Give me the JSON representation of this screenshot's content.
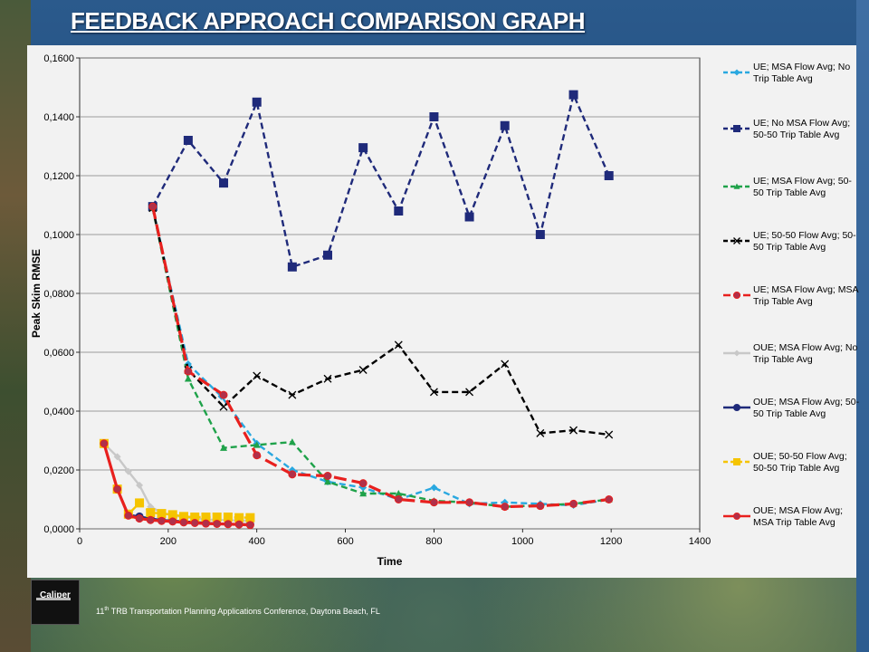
{
  "slide": {
    "title": "FEEDBACK APPROACH COMPARISON GRAPH",
    "footer_prefix": "11",
    "footer_sup": "th",
    "footer_rest": " TRB Transportation Planning Applications Conference, Daytona Beach, FL",
    "logo_text": "Caliper"
  },
  "chart_data": {
    "type": "line",
    "title": "",
    "xlabel": "Time",
    "ylabel": "Peak Skim RMSE",
    "xlim": [
      0,
      1400
    ],
    "ylim": [
      0,
      0.16
    ],
    "x_ticks": [
      0,
      200,
      400,
      600,
      800,
      1000,
      1200,
      1400
    ],
    "x_tick_labels": [
      "0",
      "200",
      "400",
      "600",
      "800",
      "1000",
      "1200",
      "1400"
    ],
    "y_ticks": [
      0,
      0.02,
      0.04,
      0.06,
      0.08,
      0.1,
      0.12,
      0.14,
      0.16
    ],
    "y_tick_labels": [
      "0,0000",
      "0,0200",
      "0,0400",
      "0,0600",
      "0,0800",
      "0,1000",
      "0,1200",
      "0,1400",
      "0,1600"
    ],
    "grid": "horizontal",
    "legend_position": "right",
    "series": [
      {
        "name": "UE; MSA Flow Avg; No Trip Table Avg",
        "color": "#29a8e0",
        "dash": "7,4",
        "marker": "diamond",
        "points": [
          [
            165,
            0.109
          ],
          [
            245,
            0.056
          ],
          [
            320,
            0.045
          ],
          [
            400,
            0.029
          ],
          [
            480,
            0.02
          ],
          [
            560,
            0.016
          ],
          [
            640,
            0.014
          ],
          [
            720,
            0.01
          ],
          [
            800,
            0.014
          ],
          [
            880,
            0.0085
          ],
          [
            960,
            0.009
          ],
          [
            1040,
            0.0085
          ],
          [
            1115,
            0.008
          ],
          [
            1195,
            0.01
          ]
        ]
      },
      {
        "name": "UE; No MSA Flow Avg; 50-50 Trip Table Avg",
        "color": "#1f2a7a",
        "dash": "7,4",
        "marker": "square",
        "points": [
          [
            165,
            0.1095
          ],
          [
            245,
            0.132
          ],
          [
            325,
            0.1175
          ],
          [
            400,
            0.145
          ],
          [
            480,
            0.089
          ],
          [
            560,
            0.093
          ],
          [
            640,
            0.1295
          ],
          [
            720,
            0.108
          ],
          [
            800,
            0.14
          ],
          [
            880,
            0.106
          ],
          [
            960,
            0.137
          ],
          [
            1040,
            0.1
          ],
          [
            1115,
            0.1475
          ],
          [
            1195,
            0.12
          ]
        ]
      },
      {
        "name": "UE; MSA Flow Avg; 50-50 Trip Table Avg",
        "color": "#1fa24a",
        "dash": "7,4",
        "marker": "triangle",
        "points": [
          [
            165,
            0.109
          ],
          [
            245,
            0.051
          ],
          [
            325,
            0.0275
          ],
          [
            400,
            0.0285
          ],
          [
            480,
            0.0295
          ],
          [
            560,
            0.016
          ],
          [
            640,
            0.012
          ],
          [
            720,
            0.012
          ],
          [
            800,
            0.0095
          ],
          [
            880,
            0.009
          ],
          [
            960,
            0.0075
          ],
          [
            1040,
            0.008
          ],
          [
            1115,
            0.0085
          ],
          [
            1195,
            0.01
          ]
        ]
      },
      {
        "name": "UE; 50-50 Flow Avg; 50-50 Trip Table Avg",
        "color": "#000000",
        "dash": "7,4",
        "marker": "x",
        "points": [
          [
            165,
            0.109
          ],
          [
            245,
            0.054
          ],
          [
            325,
            0.0415
          ],
          [
            400,
            0.052
          ],
          [
            480,
            0.0455
          ],
          [
            560,
            0.051
          ],
          [
            640,
            0.054
          ],
          [
            720,
            0.0625
          ],
          [
            800,
            0.0465
          ],
          [
            880,
            0.0465
          ],
          [
            960,
            0.056
          ],
          [
            1040,
            0.0325
          ],
          [
            1115,
            0.0335
          ],
          [
            1195,
            0.032
          ]
        ]
      },
      {
        "name": "UE; MSA Flow Avg; MSA Trip Table Avg",
        "color": "#e8201e",
        "dash": "14,6",
        "marker": "circle",
        "points": [
          [
            165,
            0.1095
          ],
          [
            245,
            0.0535
          ],
          [
            325,
            0.0455
          ],
          [
            400,
            0.025
          ],
          [
            480,
            0.0185
          ],
          [
            560,
            0.018
          ],
          [
            640,
            0.0155
          ],
          [
            720,
            0.01
          ],
          [
            800,
            0.009
          ],
          [
            880,
            0.009
          ],
          [
            960,
            0.0075
          ],
          [
            1040,
            0.0078
          ],
          [
            1115,
            0.0085
          ],
          [
            1195,
            0.01
          ]
        ]
      },
      {
        "name": "OUE; MSA Flow Avg; No Trip Table Avg",
        "color": "#c8c8c8",
        "dash": "",
        "marker": "diamond",
        "points": [
          [
            55,
            0.029
          ],
          [
            85,
            0.0245
          ],
          [
            110,
            0.0195
          ],
          [
            135,
            0.0148
          ],
          [
            160,
            0.0075
          ],
          [
            185,
            0.0055
          ],
          [
            210,
            0.0045
          ],
          [
            235,
            0.004
          ],
          [
            260,
            0.0035
          ],
          [
            285,
            0.0032
          ],
          [
            310,
            0.003
          ],
          [
            335,
            0.003
          ],
          [
            360,
            0.0028
          ],
          [
            385,
            0.0028
          ]
        ]
      },
      {
        "name": "OUE; MSA Flow Avg; 50-50 Trip Table Avg",
        "color": "#1f2a7a",
        "dash": "",
        "marker": "circle",
        "points": [
          [
            55,
            0.029
          ],
          [
            85,
            0.0135
          ],
          [
            110,
            0.0048
          ],
          [
            135,
            0.0042
          ],
          [
            160,
            0.0035
          ],
          [
            185,
            0.003
          ],
          [
            210,
            0.0028
          ],
          [
            235,
            0.0025
          ],
          [
            260,
            0.0023
          ],
          [
            285,
            0.002
          ],
          [
            310,
            0.0018
          ],
          [
            335,
            0.0017
          ],
          [
            360,
            0.0016
          ],
          [
            385,
            0.0015
          ]
        ]
      },
      {
        "name": "OUE; 50-50 Flow Avg; 50-50 Trip Table Avg",
        "color": "#f5c400",
        "dash": "7,4",
        "marker": "square",
        "points": [
          [
            55,
            0.029
          ],
          [
            85,
            0.0135
          ],
          [
            110,
            0.005
          ],
          [
            135,
            0.0088
          ],
          [
            160,
            0.0055
          ],
          [
            185,
            0.0052
          ],
          [
            210,
            0.0048
          ],
          [
            235,
            0.0042
          ],
          [
            260,
            0.004
          ],
          [
            285,
            0.004
          ],
          [
            310,
            0.004
          ],
          [
            335,
            0.004
          ],
          [
            360,
            0.0038
          ],
          [
            385,
            0.0038
          ]
        ]
      },
      {
        "name": "OUE; MSA Flow Avg; MSA Trip Table Avg",
        "color": "#e8201e",
        "dash": "",
        "marker": "circle",
        "points": [
          [
            55,
            0.029
          ],
          [
            85,
            0.0135
          ],
          [
            110,
            0.0045
          ],
          [
            135,
            0.0035
          ],
          [
            160,
            0.003
          ],
          [
            185,
            0.0027
          ],
          [
            210,
            0.0025
          ],
          [
            235,
            0.0022
          ],
          [
            260,
            0.002
          ],
          [
            285,
            0.0018
          ],
          [
            310,
            0.0017
          ],
          [
            335,
            0.0016
          ],
          [
            360,
            0.0015
          ],
          [
            385,
            0.0013
          ]
        ]
      }
    ]
  }
}
